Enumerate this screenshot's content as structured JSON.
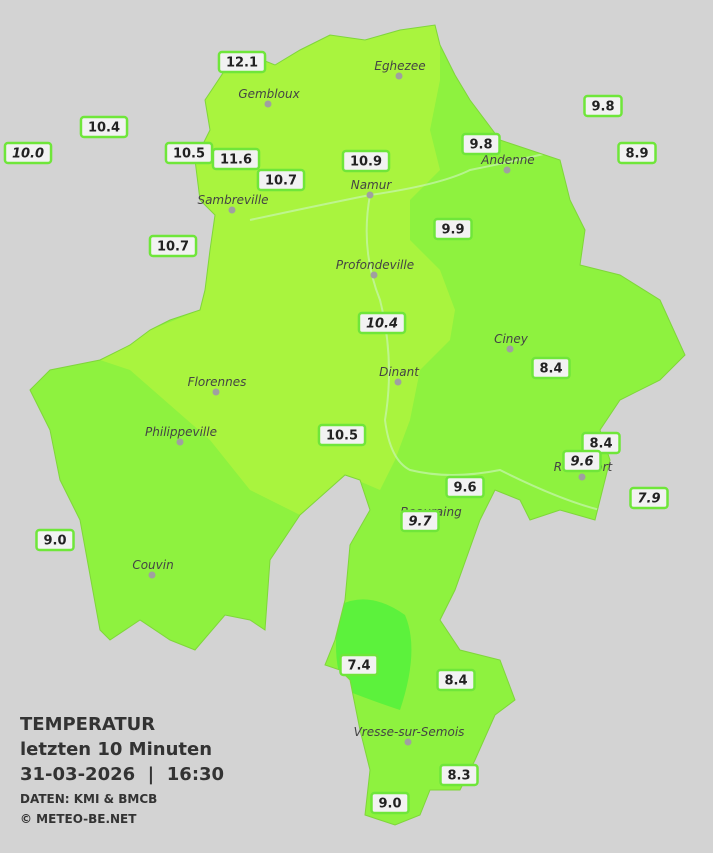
{
  "towns": [
    {
      "name": "Eghezee"
    },
    {
      "name": "Gembloux"
    },
    {
      "name": "Andenne"
    },
    {
      "name": "Namur"
    },
    {
      "name": "Sambreville"
    },
    {
      "name": "Profondeville"
    },
    {
      "name": "Ciney"
    },
    {
      "name": "Dinant"
    },
    {
      "name": "Florennes"
    },
    {
      "name": "Philippeville"
    },
    {
      "name": "Rochefort"
    },
    {
      "name": "Beauraing"
    },
    {
      "name": "Couvin"
    },
    {
      "name": "Vresse-sur-Semois"
    }
  ],
  "stations": [
    {
      "label": "12.1"
    },
    {
      "label": "10.4"
    },
    {
      "label": "10.0",
      "italic": true
    },
    {
      "label": "10.5"
    },
    {
      "label": "11.6"
    },
    {
      "label": "10.7"
    },
    {
      "label": "10.9"
    },
    {
      "label": "9.8"
    },
    {
      "label": "9.8"
    },
    {
      "label": "8.9"
    },
    {
      "label": "10.7"
    },
    {
      "label": "9.9"
    },
    {
      "label": "10.4",
      "italic": true
    },
    {
      "label": "8.4"
    },
    {
      "label": "10.5"
    },
    {
      "label": "8.4"
    },
    {
      "label": "9.6",
      "italic": true
    },
    {
      "label": "7.9",
      "italic": true
    },
    {
      "label": "9.6"
    },
    {
      "label": "9.7",
      "italic": true
    },
    {
      "label": "9.0"
    },
    {
      "label": "7.4"
    },
    {
      "label": "8.4"
    },
    {
      "label": "8.3"
    },
    {
      "label": "9.0"
    }
  ],
  "legend": {
    "title": "TEMPERATUR",
    "period": "letzten 10 Minuten",
    "datetime": "31-03-2026  |  16:30",
    "source": "DATEN: KMI & BMCB",
    "copyright": "© METEO-BE.NET"
  }
}
